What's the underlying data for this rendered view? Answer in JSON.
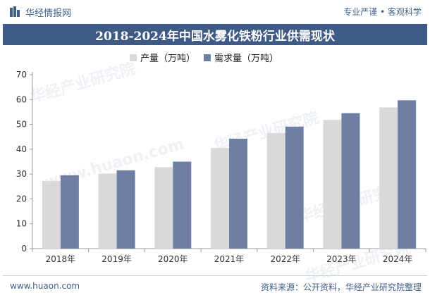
{
  "brand": {
    "name": "华经情报网",
    "slogan": "专业严谨 • 客观科学",
    "logo_icon": "bar-logo-icon"
  },
  "watermark": {
    "text": "华经产业研究院",
    "url": "www.huaon.com"
  },
  "footer": {
    "url": "www.huaon.com",
    "source": "资料来源：公开资料，华经产业研究院整理"
  },
  "colors": {
    "production": "#d9d9d9",
    "demand": "#6e7fa3",
    "title_band": "#3f5a85",
    "brand": "#3f5f8a"
  },
  "chart_data": {
    "type": "bar",
    "title": "2018-2024年中国水雾化铁粉行业供需现状",
    "categories": [
      "2018年",
      "2019年",
      "2020年",
      "2021年",
      "2022年",
      "2023年",
      "2024年"
    ],
    "series": [
      {
        "name": "产量（万吨）",
        "values": [
          27.2,
          30.2,
          32.8,
          40.5,
          46.5,
          51.8,
          56.8
        ]
      },
      {
        "name": "需求量（万吨）",
        "values": [
          29.5,
          31.5,
          35.0,
          44.2,
          49.1,
          54.5,
          59.7
        ]
      }
    ],
    "yticks": [
      0,
      10,
      20,
      30,
      40,
      50,
      60,
      70
    ],
    "ylim": [
      0,
      70
    ],
    "grid": false,
    "legend_position": "top"
  }
}
